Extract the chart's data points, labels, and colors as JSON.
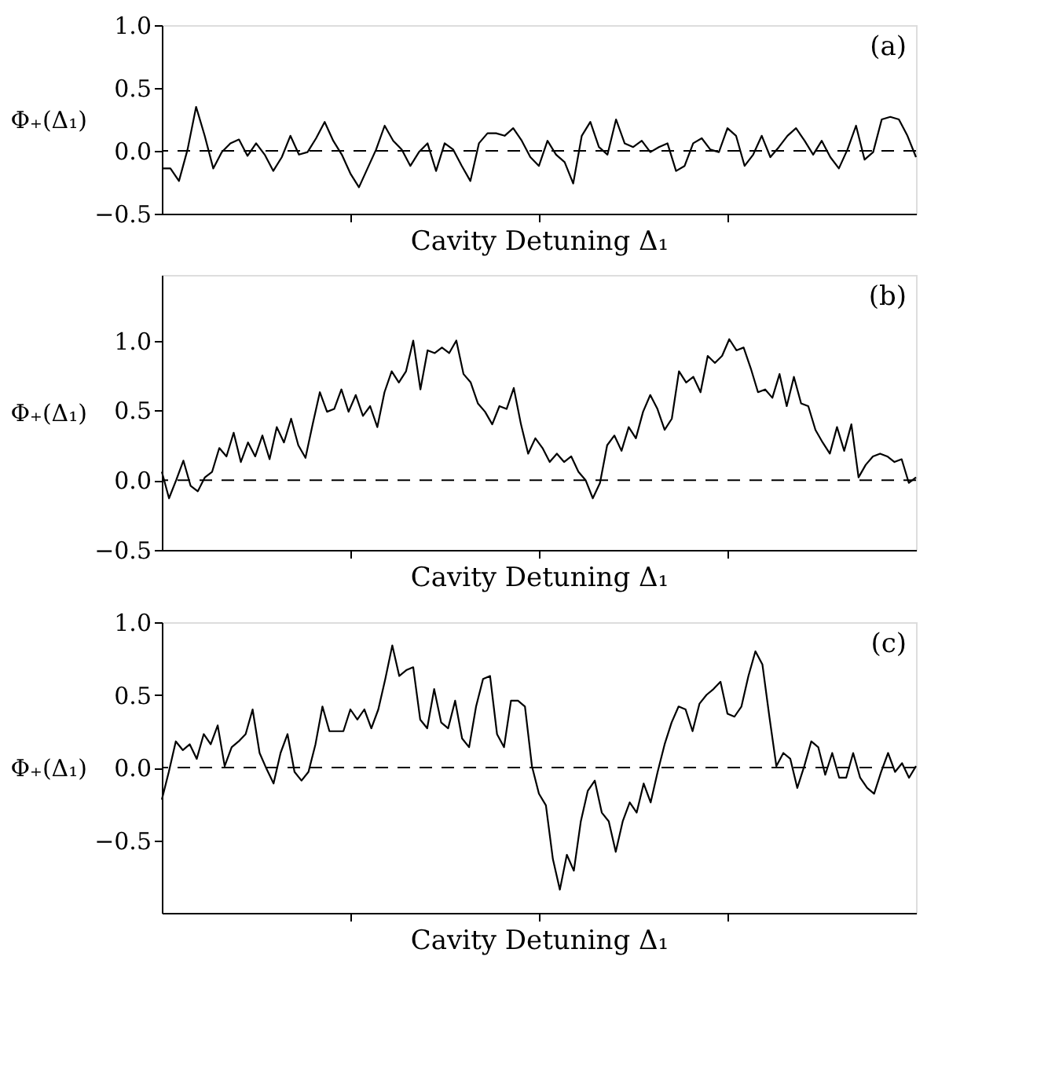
{
  "chart_data": [
    {
      "type": "line",
      "annotations": [
        "(a)"
      ],
      "xlabel": "Cavity Detuning Δ₁",
      "ylabel": "Φ₊(Δ₁)",
      "ylim": [
        -0.5,
        1.0
      ],
      "yticks": [
        {
          "value": -0.5,
          "label": "−0.5"
        },
        {
          "value": 0,
          "label": "0.0"
        },
        {
          "value": 0.5,
          "label": "0.5"
        },
        {
          "value": 1,
          "label": "1.0"
        }
      ],
      "tick_labels": "y",
      "grid": false,
      "categories": [
        null,
        null,
        null,
        null,
        null,
        null,
        null,
        null,
        null,
        null,
        null,
        null,
        null,
        null,
        null,
        null,
        null,
        null,
        null,
        null,
        null,
        null,
        null,
        null,
        null,
        null,
        null,
        null,
        null,
        null,
        null,
        null,
        null,
        null,
        null,
        null,
        null,
        null,
        null,
        null,
        null,
        null,
        null,
        null,
        null,
        null,
        null,
        null,
        null,
        null,
        null,
        null,
        null,
        null,
        null,
        null,
        null,
        null,
        null,
        null,
        null,
        null,
        null,
        null,
        null,
        null,
        null,
        null,
        null,
        null,
        null,
        null,
        null,
        null,
        null,
        null,
        null,
        null,
        null,
        null,
        null,
        null,
        null,
        null,
        null,
        null,
        null,
        null,
        null
      ],
      "ref_lines": [
        {
          "axis": "y",
          "value": 0,
          "label": null,
          "color": "#000000",
          "line_style": "dashed"
        }
      ],
      "series": [
        {
          "color": "#000000",
          "values": [
            -0.14,
            -0.14,
            -0.24,
            0.01,
            0.35,
            0.12,
            -0.14,
            -0.01,
            0.06,
            0.09,
            -0.04,
            0.06,
            -0.03,
            -0.16,
            -0.05,
            0.12,
            -0.03,
            -0.01,
            0.1,
            0.23,
            0.08,
            -0.03,
            -0.18,
            -0.29,
            -0.14,
            0.01,
            0.2,
            0.08,
            0.01,
            -0.12,
            -0.01,
            0.06,
            -0.16,
            0.06,
            0.01,
            -0.12,
            -0.24,
            0.06,
            0.14,
            0.14,
            0.12,
            0.18,
            0.08,
            -0.05,
            -0.12,
            0.08,
            -0.03,
            -0.09,
            -0.26,
            0.12,
            0.23,
            0.03,
            -0.03,
            0.25,
            0.06,
            0.03,
            0.08,
            -0.01,
            0.03,
            0.06,
            -0.16,
            -0.12,
            0.06,
            0.1,
            0.01,
            -0.01,
            0.18,
            0.12,
            -0.12,
            -0.03,
            0.12,
            -0.05,
            0.03,
            0.12,
            0.18,
            0.08,
            -0.03,
            0.08,
            -0.05,
            -0.14,
            0.01,
            0.2,
            -0.07,
            -0.01,
            0.25,
            0.27,
            0.25,
            0.12,
            -0.05
          ]
        }
      ]
    },
    {
      "type": "line",
      "annotations": [
        "(b)"
      ],
      "xlabel": "Cavity Detuning Δ₁",
      "ylabel": "Φ₊(Δ₁)",
      "ylim": [
        -0.5,
        1.47
      ],
      "yticks": [
        {
          "value": -0.5,
          "label": "−0.5"
        },
        {
          "value": 0,
          "label": "0.0"
        },
        {
          "value": 0.5,
          "label": "0.5"
        },
        {
          "value": 1,
          "label": "1.0"
        }
      ],
      "tick_labels": "y",
      "grid": false,
      "categories": [
        null,
        null,
        null,
        null,
        null,
        null,
        null,
        null,
        null,
        null,
        null,
        null,
        null,
        null,
        null,
        null,
        null,
        null,
        null,
        null,
        null,
        null,
        null,
        null,
        null,
        null,
        null,
        null,
        null,
        null,
        null,
        null,
        null,
        null,
        null,
        null,
        null,
        null,
        null,
        null,
        null,
        null,
        null,
        null,
        null,
        null,
        null,
        null,
        null,
        null,
        null,
        null,
        null,
        null,
        null,
        null,
        null,
        null,
        null,
        null,
        null,
        null,
        null,
        null,
        null,
        null,
        null,
        null,
        null,
        null,
        null,
        null,
        null,
        null,
        null,
        null,
        null,
        null,
        null,
        null,
        null,
        null,
        null,
        null,
        null,
        null,
        null,
        null,
        null,
        null,
        null,
        null,
        null,
        null,
        null,
        null,
        null,
        null,
        null,
        null,
        null,
        null,
        null,
        null,
        null,
        null
      ],
      "ref_lines": [
        {
          "axis": "y",
          "value": 0,
          "label": null,
          "color": "#000000",
          "line_style": "dashed"
        }
      ],
      "series": [
        {
          "color": "#000000",
          "values": [
            0.06,
            -0.13,
            0.0,
            0.14,
            -0.04,
            -0.08,
            0.02,
            0.06,
            0.23,
            0.17,
            0.34,
            0.13,
            0.27,
            0.17,
            0.32,
            0.15,
            0.38,
            0.27,
            0.44,
            0.25,
            0.16,
            0.4,
            0.63,
            0.49,
            0.51,
            0.65,
            0.49,
            0.61,
            0.46,
            0.53,
            0.38,
            0.63,
            0.78,
            0.7,
            0.78,
            1.0,
            0.65,
            0.93,
            0.91,
            0.95,
            0.91,
            1.0,
            0.76,
            0.7,
            0.55,
            0.49,
            0.4,
            0.53,
            0.51,
            0.66,
            0.4,
            0.19,
            0.3,
            0.23,
            0.13,
            0.19,
            0.13,
            0.17,
            0.06,
            0.0,
            -0.13,
            -0.02,
            0.25,
            0.32,
            0.21,
            0.38,
            0.3,
            0.49,
            0.61,
            0.51,
            0.36,
            0.44,
            0.78,
            0.7,
            0.74,
            0.63,
            0.89,
            0.84,
            0.89,
            1.01,
            0.93,
            0.95,
            0.8,
            0.63,
            0.65,
            0.59,
            0.76,
            0.53,
            0.74,
            0.55,
            0.53,
            0.36,
            0.27,
            0.19,
            0.38,
            0.21,
            0.4,
            0.02,
            0.11,
            0.17,
            0.19,
            0.17,
            0.13,
            0.15,
            -0.02,
            0.02
          ]
        }
      ]
    },
    {
      "type": "line",
      "annotations": [
        "(c)"
      ],
      "xlabel": "Cavity Detuning Δ₁",
      "ylabel": "Φ₊(Δ₁)",
      "ylim": [
        -1.0,
        1.0
      ],
      "yticks": [
        {
          "value": -0.5,
          "label": "−0.5"
        },
        {
          "value": 0,
          "label": "0.0"
        },
        {
          "value": 0.5,
          "label": "0.5"
        },
        {
          "value": 1,
          "label": "1.0"
        }
      ],
      "tick_labels": "y",
      "grid": false,
      "categories": [
        null,
        null,
        null,
        null,
        null,
        null,
        null,
        null,
        null,
        null,
        null,
        null,
        null,
        null,
        null,
        null,
        null,
        null,
        null,
        null,
        null,
        null,
        null,
        null,
        null,
        null,
        null,
        null,
        null,
        null,
        null,
        null,
        null,
        null,
        null,
        null,
        null,
        null,
        null,
        null,
        null,
        null,
        null,
        null,
        null,
        null,
        null,
        null,
        null,
        null,
        null,
        null,
        null,
        null,
        null,
        null,
        null,
        null,
        null,
        null,
        null,
        null,
        null,
        null,
        null,
        null,
        null,
        null,
        null,
        null,
        null,
        null,
        null,
        null,
        null,
        null,
        null,
        null,
        null,
        null,
        null,
        null,
        null,
        null,
        null,
        null,
        null,
        null,
        null,
        null,
        null,
        null,
        null,
        null,
        null,
        null,
        null,
        null,
        null,
        null,
        null,
        null,
        null,
        null,
        null,
        null,
        null,
        null,
        null
      ],
      "ref_lines": [
        {
          "axis": "y",
          "value": 0,
          "label": null,
          "color": "#000000",
          "line_style": "dashed"
        }
      ],
      "series": [
        {
          "color": "#000000",
          "values": [
            -0.22,
            -0.03,
            0.18,
            0.12,
            0.16,
            0.06,
            0.23,
            0.16,
            0.29,
            0.01,
            0.14,
            0.18,
            0.23,
            0.4,
            0.1,
            -0.01,
            -0.11,
            0.1,
            0.23,
            -0.03,
            -0.09,
            -0.03,
            0.16,
            0.42,
            0.25,
            0.25,
            0.25,
            0.4,
            0.33,
            0.4,
            0.27,
            0.4,
            0.61,
            0.84,
            0.63,
            0.67,
            0.69,
            0.33,
            0.27,
            0.54,
            0.31,
            0.27,
            0.46,
            0.2,
            0.14,
            0.42,
            0.61,
            0.63,
            0.23,
            0.14,
            0.46,
            0.46,
            0.42,
            0.01,
            -0.18,
            -0.26,
            -0.63,
            -0.84,
            -0.6,
            -0.71,
            -0.37,
            -0.16,
            -0.09,
            -0.31,
            -0.37,
            -0.58,
            -0.37,
            -0.24,
            -0.31,
            -0.11,
            -0.24,
            -0.03,
            0.16,
            0.31,
            0.42,
            0.4,
            0.25,
            0.44,
            0.5,
            0.54,
            0.59,
            0.37,
            0.35,
            0.42,
            0.63,
            0.8,
            0.71,
            0.35,
            0.01,
            0.1,
            0.06,
            -0.14,
            0.01,
            0.18,
            0.14,
            -0.05,
            0.1,
            -0.07,
            -0.07,
            0.1,
            -0.07,
            -0.14,
            -0.18,
            -0.03,
            0.1,
            -0.03,
            0.03,
            -0.07,
            0.01
          ]
        }
      ]
    }
  ]
}
